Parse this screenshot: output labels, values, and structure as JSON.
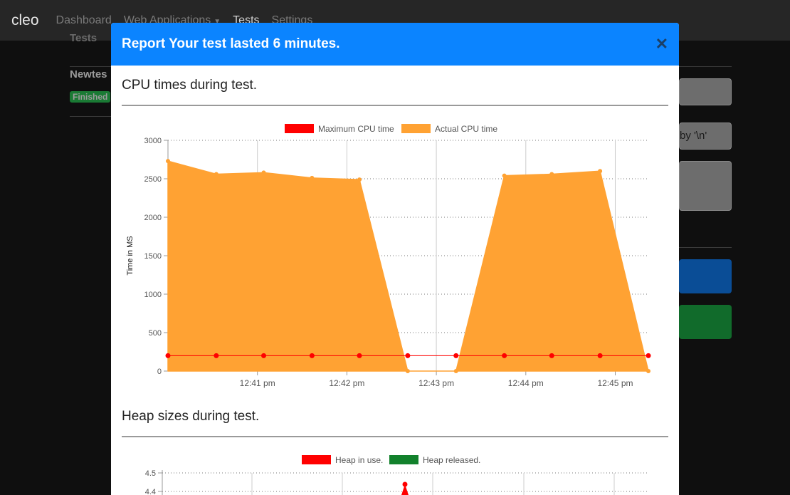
{
  "navbar": {
    "brand": "cleo",
    "links": [
      "Dashboard",
      "Web Applications",
      "Tests",
      "Settings"
    ],
    "active": "Tests"
  },
  "background": {
    "list_title": "Newtes",
    "status_badge": "Finished",
    "input_placeholder": "by '\\n'"
  },
  "modal": {
    "title": "Report Your test lasted 6 minutes.",
    "close_icon": "close-icon",
    "sections": [
      {
        "title": "CPU times during test."
      },
      {
        "title": "Heap sizes during test."
      }
    ]
  },
  "colors": {
    "header": "#0b84ff",
    "max_cpu": "#ff0000",
    "actual_cpu": "#ffa233",
    "heap_in_use": "#ff0000",
    "heap_released": "#12812c"
  },
  "chart_data": [
    {
      "type": "area",
      "ylabel": "Time in MS",
      "ylim": [
        0,
        3000
      ],
      "yticks": [
        0,
        500,
        1000,
        1500,
        2000,
        2500,
        3000
      ],
      "xtick_labels": [
        "12:41 pm",
        "12:42 pm",
        "12:43 pm",
        "12:44 pm",
        "12:45 pm"
      ],
      "xtick_times": [
        1,
        2,
        3,
        4,
        5
      ],
      "x": [
        0.0,
        0.54,
        1.07,
        1.61,
        2.14,
        2.68,
        3.22,
        3.76,
        4.29,
        4.83,
        5.37
      ],
      "grid": true,
      "legend_position": "top",
      "series": [
        {
          "name": "Maximum CPU time",
          "values": [
            200,
            200,
            200,
            200,
            200,
            200,
            200,
            200,
            200,
            200,
            200
          ]
        },
        {
          "name": "Actual CPU time",
          "values": [
            2730,
            2560,
            2580,
            2510,
            2490,
            0,
            0,
            2540,
            2560,
            2600,
            0
          ]
        }
      ]
    },
    {
      "type": "line",
      "ylim_visible": [
        4.4,
        4.5
      ],
      "yticks": [
        4.5,
        4.4
      ],
      "grid": true,
      "legend_position": "top",
      "series": [
        {
          "name": "Heap in use."
        },
        {
          "name": "Heap released."
        }
      ]
    }
  ]
}
